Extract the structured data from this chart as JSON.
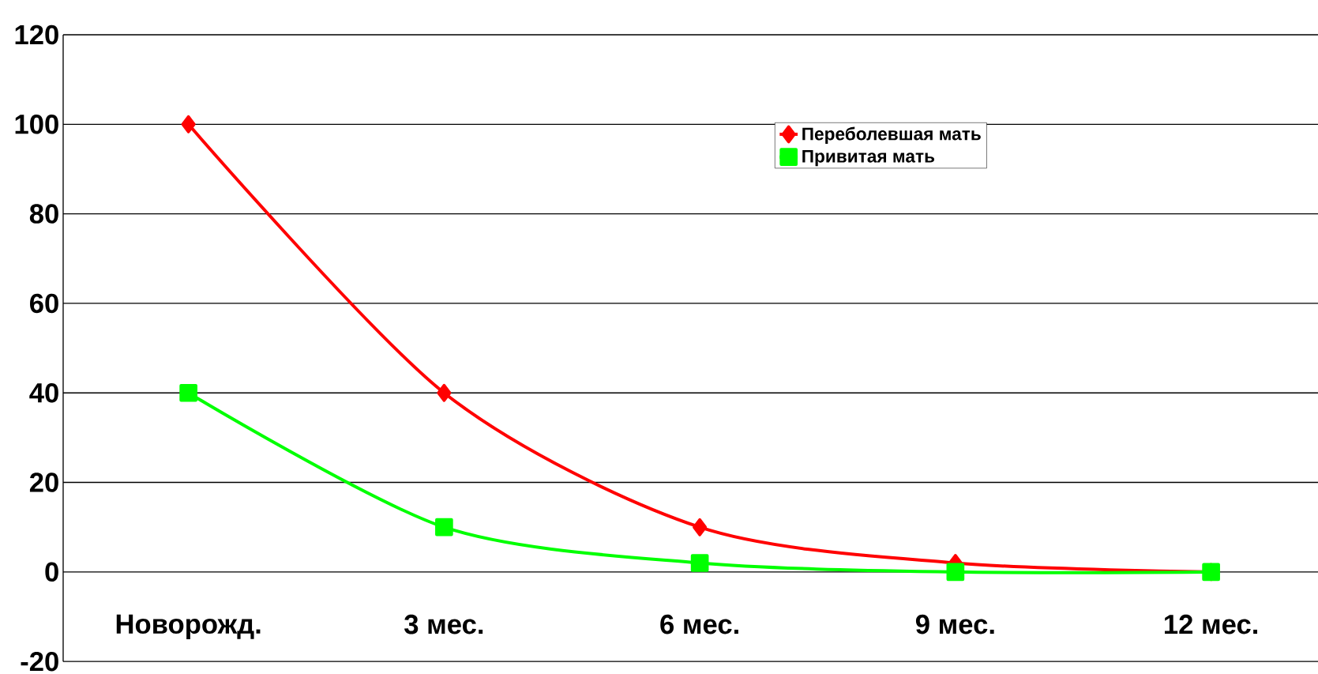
{
  "chart_data": {
    "type": "line",
    "categories": [
      "Новорожд.",
      "3 мес.",
      "6 мес.",
      "9 мес.",
      "12 мес."
    ],
    "series": [
      {
        "name": "Переболевшая мать",
        "color": "#ff0000",
        "marker": "diamond",
        "values": [
          100,
          40,
          10,
          2,
          0
        ]
      },
      {
        "name": "Привитая мать",
        "color": "#00ff00",
        "marker": "square",
        "values": [
          40,
          10,
          2,
          0,
          0
        ]
      }
    ],
    "ylim": [
      -20,
      120
    ],
    "yticks": [
      -20,
      0,
      20,
      40,
      60,
      80,
      100,
      120
    ],
    "grid": "y",
    "legend": "top right"
  }
}
